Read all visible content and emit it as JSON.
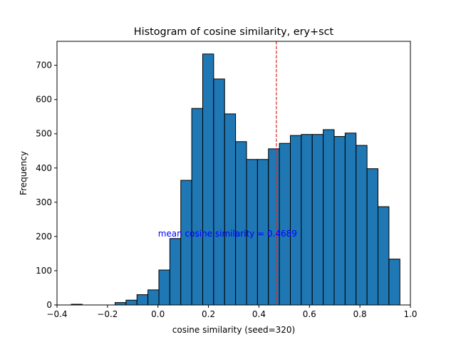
{
  "chart_data": {
    "type": "bar",
    "subtype": "histogram",
    "title": "Histogram of cosine similarity, ery+sct",
    "xlabel": "cosine similarity (seed=320)",
    "ylabel": "Frequency",
    "xlim": [
      -0.4,
      1.0
    ],
    "ylim": [
      0,
      770
    ],
    "x_ticks": [
      -0.4,
      -0.2,
      0.0,
      0.2,
      0.4,
      0.6,
      0.8,
      1.0
    ],
    "x_tick_labels": [
      "−0.4",
      "−0.2",
      "0.0",
      "0.2",
      "0.4",
      "0.6",
      "0.8",
      "1.0"
    ],
    "y_ticks": [
      0,
      100,
      200,
      300,
      400,
      500,
      600,
      700
    ],
    "y_tick_labels": [
      "0",
      "100",
      "200",
      "300",
      "400",
      "500",
      "600",
      "700"
    ],
    "bin_start": -0.3436,
    "bin_width": 0.0434,
    "counts": [
      2,
      0,
      0,
      0,
      7,
      14,
      30,
      44,
      102,
      194,
      364,
      574,
      733,
      660,
      558,
      477,
      425,
      425,
      456,
      472,
      495,
      498,
      498,
      512,
      492,
      502,
      466,
      398,
      287,
      134
    ],
    "bar_color": "#1f77b4",
    "edge_color": "#000000",
    "mean_line": {
      "x": 0.4689,
      "color": "#d62728",
      "style": "dashed"
    },
    "annotation": {
      "text": "mean cosine similarity = 0.4689",
      "x": 0.0,
      "y": 200,
      "color": "#0000ff"
    },
    "grid": false,
    "legend": "none"
  }
}
